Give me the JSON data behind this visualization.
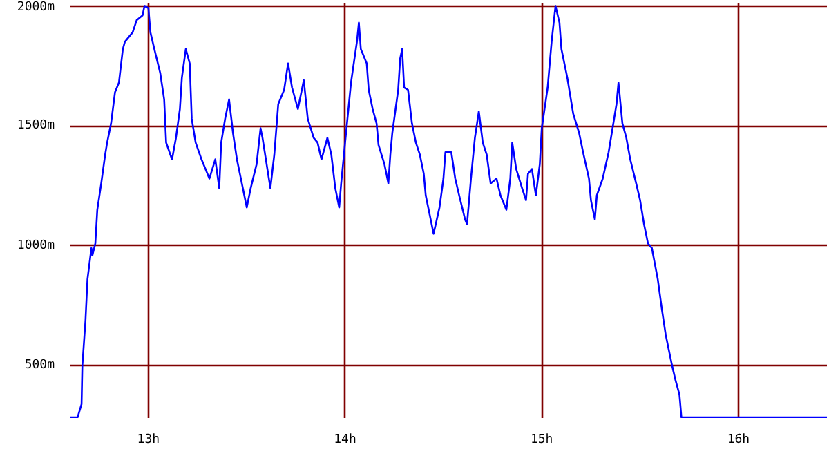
{
  "chart_data": {
    "type": "line",
    "x": [
      12.6,
      12.64,
      12.66,
      12.664,
      12.68,
      12.69,
      12.71,
      12.715,
      12.73,
      12.74,
      12.76,
      12.78,
      12.79,
      12.81,
      12.83,
      12.85,
      12.87,
      12.88,
      12.9,
      12.92,
      12.94,
      12.97,
      12.98,
      13.0,
      13.01,
      13.03,
      13.06,
      13.08,
      13.09,
      13.12,
      13.14,
      13.16,
      13.17,
      13.19,
      13.21,
      13.22,
      13.24,
      13.27,
      13.29,
      13.31,
      13.34,
      13.36,
      13.37,
      13.39,
      13.41,
      13.43,
      13.45,
      13.48,
      13.5,
      13.52,
      13.55,
      13.57,
      13.58,
      13.62,
      13.64,
      13.66,
      13.69,
      13.71,
      13.73,
      13.76,
      13.79,
      13.81,
      13.84,
      13.86,
      13.88,
      13.91,
      13.93,
      13.95,
      13.97,
      13.98,
      14.0,
      14.03,
      14.06,
      14.07,
      14.08,
      14.11,
      14.12,
      14.14,
      14.16,
      14.17,
      14.2,
      14.22,
      14.23,
      14.24,
      14.27,
      14.28,
      14.29,
      14.3,
      14.32,
      14.34,
      14.36,
      14.38,
      14.4,
      14.41,
      14.43,
      14.45,
      14.48,
      14.5,
      14.51,
      14.54,
      14.56,
      14.58,
      14.61,
      14.62,
      14.64,
      14.66,
      14.68,
      14.7,
      14.72,
      14.74,
      14.77,
      14.79,
      14.82,
      14.84,
      14.85,
      14.87,
      14.9,
      14.92,
      14.93,
      14.95,
      14.97,
      14.99,
      15.0,
      15.03,
      15.05,
      15.07,
      15.09,
      15.1,
      15.13,
      15.16,
      15.19,
      15.21,
      15.24,
      15.25,
      15.27,
      15.28,
      15.31,
      15.34,
      15.36,
      15.38,
      15.39,
      15.41,
      15.43,
      15.45,
      15.48,
      15.5,
      15.52,
      15.54,
      15.56,
      15.59,
      15.61,
      15.63,
      15.66,
      15.68,
      15.7,
      15.71,
      16.45
    ],
    "series": [
      {
        "color": "#0000ff",
        "values": [
          285,
          285,
          340,
          500,
          690,
          860,
          990,
          960,
          1010,
          1150,
          1260,
          1380,
          1430,
          1510,
          1640,
          1680,
          1820,
          1850,
          1870,
          1890,
          1940,
          1960,
          2000,
          1990,
          1890,
          1820,
          1720,
          1610,
          1430,
          1360,
          1450,
          1570,
          1700,
          1820,
          1760,
          1530,
          1430,
          1360,
          1320,
          1280,
          1360,
          1240,
          1430,
          1530,
          1610,
          1470,
          1360,
          1240,
          1160,
          1240,
          1340,
          1490,
          1450,
          1240,
          1380,
          1590,
          1650,
          1760,
          1660,
          1570,
          1690,
          1530,
          1450,
          1430,
          1360,
          1450,
          1380,
          1240,
          1160,
          1260,
          1430,
          1680,
          1850,
          1930,
          1820,
          1760,
          1650,
          1570,
          1510,
          1420,
          1340,
          1260,
          1380,
          1470,
          1650,
          1780,
          1820,
          1660,
          1650,
          1510,
          1430,
          1380,
          1300,
          1210,
          1130,
          1050,
          1160,
          1280,
          1390,
          1390,
          1280,
          1210,
          1110,
          1090,
          1280,
          1450,
          1560,
          1430,
          1380,
          1260,
          1280,
          1210,
          1150,
          1280,
          1430,
          1320,
          1240,
          1190,
          1300,
          1320,
          1210,
          1340,
          1490,
          1660,
          1850,
          2000,
          1930,
          1820,
          1700,
          1550,
          1470,
          1390,
          1280,
          1190,
          1110,
          1210,
          1280,
          1390,
          1490,
          1590,
          1680,
          1510,
          1450,
          1360,
          1260,
          1190,
          1090,
          1010,
          990,
          860,
          740,
          630,
          510,
          440,
          380,
          285,
          285
        ]
      }
    ],
    "xlim": [
      12.6,
      16.45
    ],
    "ylim": [
      282,
      2010
    ],
    "xticks": [
      {
        "value": 13,
        "label": "13h"
      },
      {
        "value": 14,
        "label": "14h"
      },
      {
        "value": 15,
        "label": "15h"
      },
      {
        "value": 16,
        "label": "16h"
      }
    ],
    "yticks": [
      {
        "value": 500,
        "label": "500m"
      },
      {
        "value": 1000,
        "label": "1000m"
      },
      {
        "value": 1500,
        "label": "1500m"
      },
      {
        "value": 2000,
        "label": "2000m"
      }
    ],
    "grid": true
  }
}
